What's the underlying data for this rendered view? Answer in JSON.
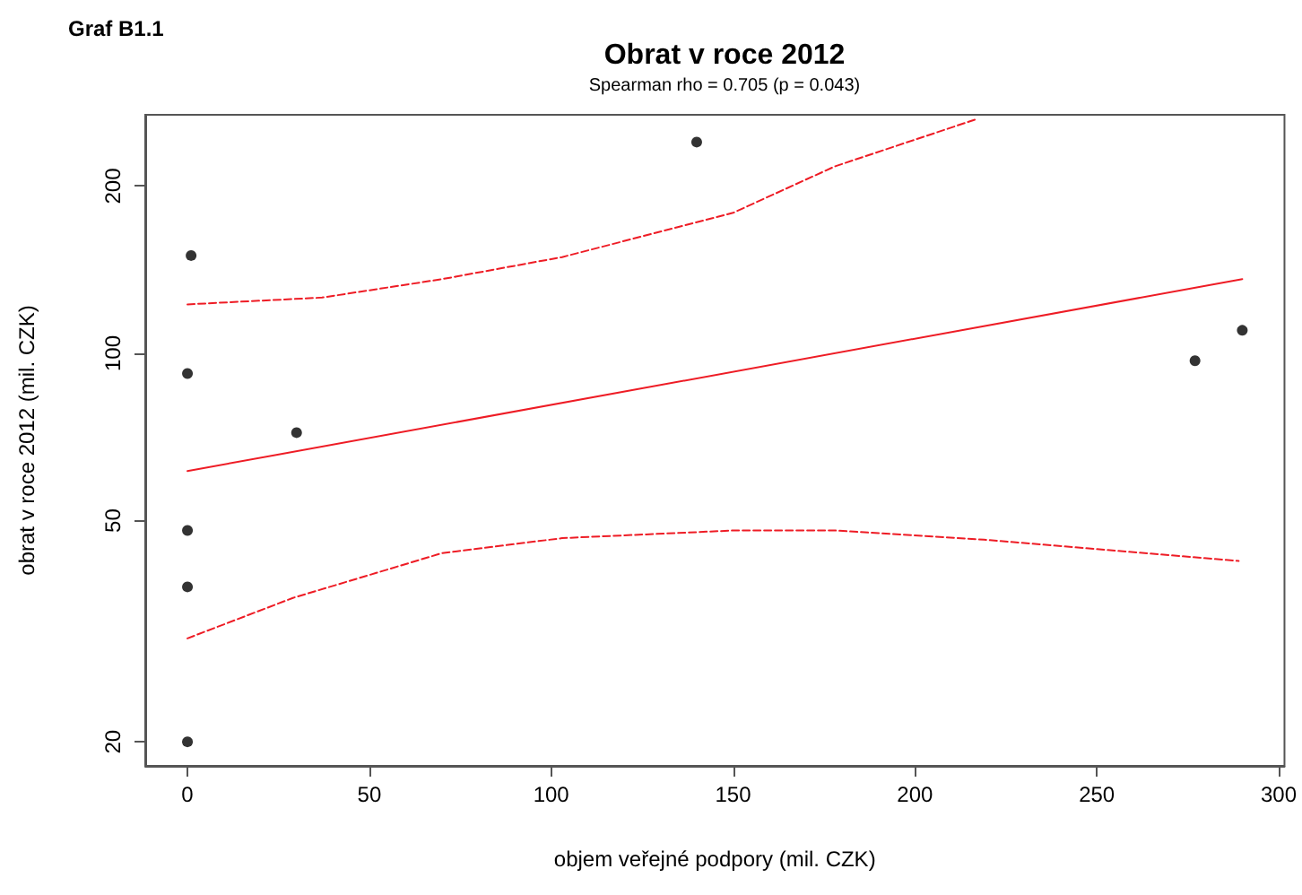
{
  "chart_data": {
    "type": "scatter",
    "title": "Obrat v roce 2012",
    "subtitle": "Spearman rho = 0.705 (p = 0.043)",
    "xlabel": "objem veřejné podpory (mil. CZK)",
    "ylabel": "obrat v roce 2012 (mil. CZK)",
    "annotations": [
      "Graf B1.1"
    ],
    "series": [
      {
        "color": "#000000",
        "marker": "circle",
        "x": [
          1,
          0,
          0,
          0,
          0,
          30,
          140,
          277,
          290
        ],
        "values": [
          150,
          92,
          48,
          38,
          20,
          72,
          240,
          97,
          110
        ]
      },
      {
        "type": "line",
        "color": "#ee1c25",
        "line_style": "solid",
        "marker": "none",
        "x": [
          0,
          290
        ],
        "values": [
          61.4,
          136
        ]
      },
      {
        "type": "line",
        "color": "#ee1c25",
        "line_style": "dashed",
        "marker": "none",
        "x": [
          0,
          37,
          70,
          103,
          150,
          178,
          217
        ],
        "values": [
          122.5,
          126,
          136,
          149,
          179,
          217,
          264
        ]
      },
      {
        "type": "line",
        "color": "#ee1c25",
        "line_style": "dashed",
        "marker": "none",
        "x": [
          0,
          29,
          70,
          103,
          150,
          178,
          219,
          289
        ],
        "values": [
          30.7,
          36.3,
          43.7,
          46.5,
          48,
          48,
          46.2,
          42.3
        ]
      }
    ],
    "xlim": [
      -11.6,
      301.6
    ],
    "xticks": [
      0,
      50,
      100,
      150,
      200,
      250,
      300
    ],
    "ylim": [
      18.1,
      268.7
    ],
    "yticks": [
      20,
      50,
      100,
      200
    ],
    "log": "y"
  }
}
